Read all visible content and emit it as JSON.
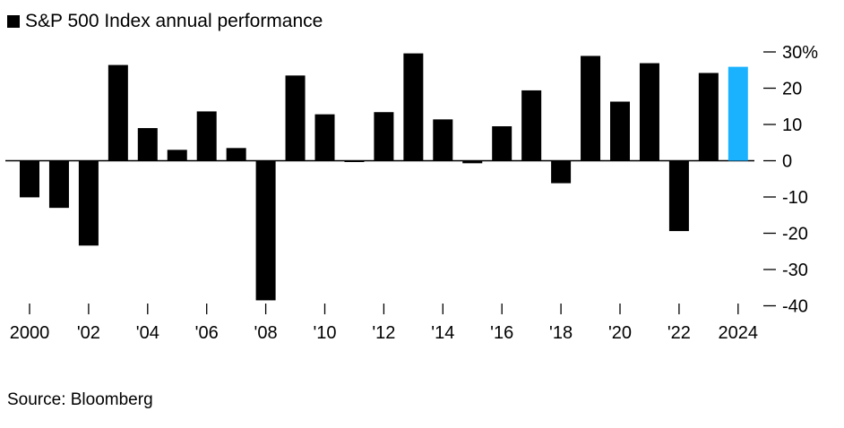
{
  "chart_data": {
    "type": "bar",
    "title": "",
    "legend": "S&P 500 Index annual performance",
    "categories": [
      "2000",
      "2001",
      "2002",
      "2003",
      "2004",
      "2005",
      "2006",
      "2007",
      "2008",
      "2009",
      "2010",
      "2011",
      "2012",
      "2013",
      "2014",
      "2015",
      "2016",
      "2017",
      "2018",
      "2019",
      "2020",
      "2021",
      "2022",
      "2023",
      "2024"
    ],
    "values": [
      -10.1,
      -13.0,
      -23.4,
      26.4,
      9.0,
      3.0,
      13.6,
      3.5,
      -38.5,
      23.5,
      12.8,
      0.0,
      13.4,
      29.6,
      11.4,
      -0.7,
      9.5,
      19.4,
      -6.2,
      28.9,
      16.3,
      26.9,
      -19.4,
      24.2,
      25.9
    ],
    "highlight_index": 24,
    "x_tick_labels": [
      "2000",
      "'02",
      "'04",
      "'06",
      "'08",
      "'10",
      "'12",
      "'14",
      "'16",
      "'18",
      "'20",
      "'22",
      "2024"
    ],
    "y_ticks": [
      30,
      20,
      10,
      0,
      -10,
      -20,
      -30,
      -40
    ],
    "y_tick_labels": [
      "30%",
      "20",
      "10",
      "0",
      "-10",
      "-20",
      "-30",
      "-40"
    ],
    "ylim": [
      -40,
      30
    ],
    "xlabel": "",
    "ylabel": "",
    "colors": {
      "bar": "#000000",
      "highlight": "#1ab2ff",
      "axis": "#000000"
    }
  },
  "source": "Source: Bloomberg"
}
